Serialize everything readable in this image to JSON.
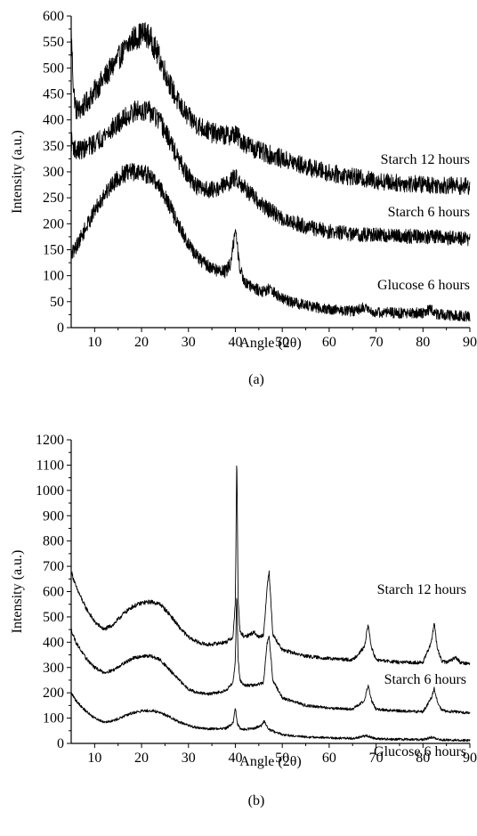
{
  "panels": [
    {
      "caption": "(a)",
      "chart_data": {
        "type": "line",
        "xlabel": "Angle (2θ)",
        "ylabel": "Intensity (a.u.)",
        "xlim": [
          5,
          90
        ],
        "ylim": [
          0,
          600
        ],
        "xticks": [
          10,
          20,
          30,
          40,
          50,
          60,
          70,
          80,
          90
        ],
        "yticks": [
          0,
          50,
          100,
          150,
          200,
          250,
          300,
          350,
          400,
          450,
          500,
          550,
          600
        ],
        "noise": 16,
        "series": [
          {
            "name": "Starch 12 hours",
            "color": "#000000",
            "x": [
              5,
              5.5,
              6,
              7,
              8,
              10,
              12,
              14,
              16,
              18,
              20,
              21,
              22,
              24,
              26,
              28,
              30,
              32,
              35,
              38,
              40,
              42,
              45,
              50,
              55,
              60,
              65,
              70,
              75,
              80,
              85,
              90
            ],
            "y": [
              570,
              460,
              420,
              420,
              430,
              455,
              480,
              505,
              530,
              555,
              565,
              565,
              555,
              515,
              470,
              430,
              405,
              390,
              375,
              370,
              372,
              355,
              340,
              325,
              310,
              298,
              290,
              283,
              278,
              276,
              274,
              272
            ]
          },
          {
            "name": "Starch 6 hours",
            "color": "#000000",
            "x": [
              5,
              6,
              8,
              10,
              12,
              14,
              16,
              18,
              20,
              22,
              24,
              26,
              28,
              30,
              32,
              35,
              38,
              40,
              42,
              45,
              50,
              55,
              60,
              65,
              70,
              75,
              80,
              85,
              90
            ],
            "y": [
              360,
              340,
              345,
              355,
              370,
              385,
              400,
              415,
              420,
              415,
              395,
              360,
              320,
              290,
              270,
              265,
              275,
              290,
              270,
              240,
              210,
              195,
              185,
              180,
              178,
              176,
              176,
              173,
              170
            ]
          },
          {
            "name": "Glucose 6 hours",
            "color": "#000000",
            "x": [
              5,
              6,
              8,
              10,
              12,
              14,
              16,
              18,
              20,
              22,
              24,
              26,
              28,
              30,
              32,
              34,
              36,
              38,
              39,
              39.5,
              40,
              40.5,
              41,
              42,
              44,
              46,
              47,
              50,
              55,
              60,
              65,
              67,
              70,
              75,
              80,
              81.5,
              83,
              85,
              90
            ],
            "y": [
              140,
              155,
              190,
              225,
              255,
              280,
              295,
              300,
              300,
              290,
              270,
              235,
              195,
              160,
              135,
              120,
              110,
              108,
              125,
              160,
              185,
              150,
              110,
              90,
              75,
              70,
              75,
              55,
              42,
              35,
              32,
              38,
              30,
              28,
              28,
              35,
              26,
              24,
              22
            ]
          }
        ]
      }
    },
    {
      "caption": "(b)",
      "chart_data": {
        "type": "line",
        "xlabel": "Angle (2θ)",
        "ylabel": "Intensity (a.u.)",
        "xlim": [
          5,
          90
        ],
        "ylim": [
          0,
          1200
        ],
        "xticks": [
          10,
          20,
          30,
          40,
          50,
          60,
          70,
          80,
          90
        ],
        "yticks": [
          0,
          100,
          200,
          300,
          400,
          500,
          600,
          700,
          800,
          900,
          1000,
          1100,
          1200
        ],
        "noise": 8,
        "series": [
          {
            "name": "Starch 12 hours",
            "color": "#000000",
            "x": [
              5,
              6,
              8,
              10,
              12,
              14,
              16,
              18,
              20,
              22,
              24,
              26,
              28,
              30,
              32,
              34,
              36,
              38,
              39.5,
              40,
              40.3,
              40.6,
              41,
              42,
              43,
              44,
              45,
              46,
              46.8,
              47.2,
              48,
              50,
              55,
              60,
              65,
              67.5,
              68.3,
              69,
              70,
              75,
              80,
              81.8,
              82.4,
              83,
              84,
              85,
              87,
              88,
              90
            ],
            "y": [
              680,
              620,
              540,
              480,
              450,
              470,
              510,
              540,
              555,
              560,
              550,
              510,
              460,
              420,
              400,
              390,
              395,
              400,
              420,
              560,
              1140,
              560,
              440,
              420,
              430,
              440,
              420,
              430,
              620,
              680,
              430,
              370,
              345,
              335,
              330,
              380,
              470,
              380,
              330,
              320,
              320,
              400,
              480,
              380,
              325,
              320,
              340,
              320,
              315
            ]
          },
          {
            "name": "Starch 6 hours",
            "color": "#000000",
            "x": [
              5,
              6,
              8,
              10,
              12,
              14,
              16,
              18,
              20,
              22,
              24,
              26,
              28,
              30,
              32,
              34,
              36,
              38,
              39.5,
              40,
              40.3,
              40.6,
              41,
              42,
              44,
              46,
              46.8,
              47.2,
              48,
              50,
              55,
              60,
              65,
              67.5,
              68.3,
              69,
              70,
              75,
              80,
              81.8,
              82.4,
              83,
              84,
              90
            ],
            "y": [
              450,
              400,
              340,
              300,
              280,
              290,
              315,
              335,
              345,
              345,
              330,
              290,
              250,
              215,
              200,
              195,
              200,
              210,
              240,
              330,
              600,
              330,
              250,
              230,
              230,
              240,
              400,
              420,
              250,
              180,
              150,
              140,
              135,
              170,
              230,
              170,
              135,
              128,
              125,
              180,
              220,
              170,
              130,
              120
            ]
          },
          {
            "name": "Glucose 6 hours",
            "color": "#000000",
            "x": [
              5,
              6,
              8,
              10,
              12,
              14,
              16,
              18,
              20,
              22,
              24,
              26,
              28,
              30,
              32,
              34,
              36,
              38,
              39.5,
              40,
              40.4,
              41,
              42,
              44,
              45.5,
              46.2,
              47,
              50,
              55,
              60,
              65,
              68,
              70,
              75,
              80,
              82,
              84,
              90
            ],
            "y": [
              200,
              170,
              130,
              100,
              85,
              90,
              105,
              120,
              128,
              130,
              122,
              105,
              85,
              70,
              62,
              58,
              58,
              60,
              80,
              140,
              80,
              60,
              55,
              60,
              70,
              90,
              55,
              35,
              25,
              22,
              20,
              30,
              18,
              16,
              15,
              25,
              14,
              12
            ]
          }
        ]
      }
    }
  ]
}
